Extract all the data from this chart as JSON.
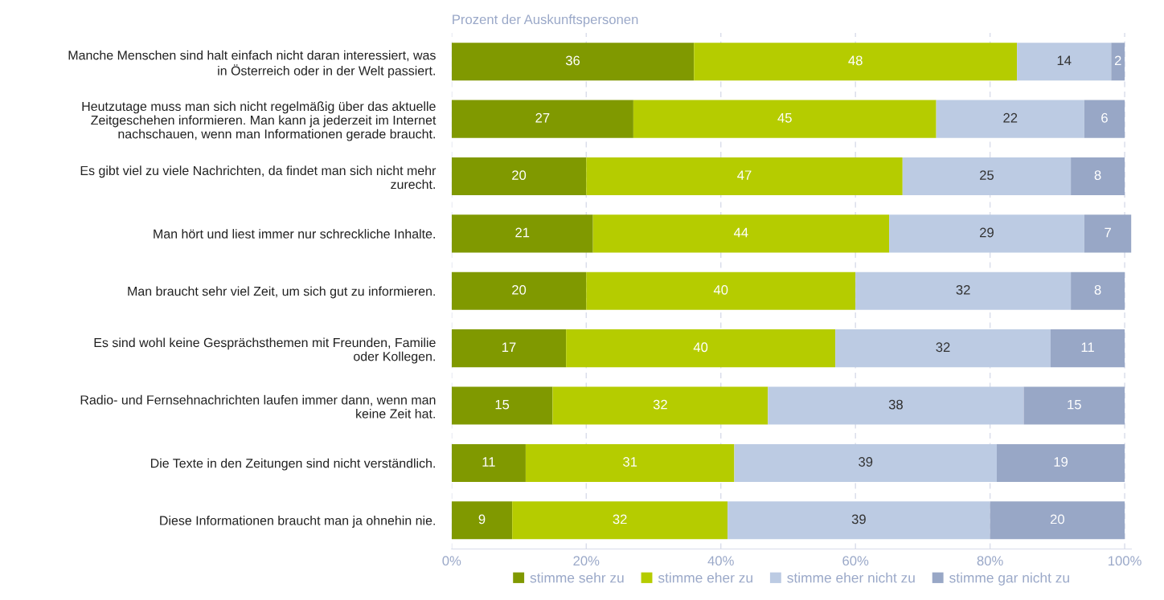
{
  "chart_data": {
    "type": "bar",
    "orientation": "horizontal",
    "stacked": true,
    "xlabel": "Prozent der Auskunftspersonen",
    "categories": [
      "Manche Menschen sind halt einfach nicht daran interessiert, was\nin Österreich oder in der Welt passiert.",
      "Heutzutage muss man sich nicht regelmäßig über das aktuelle\nZeitgeschehen informieren. Man kann ja jederzeit im Internet\nnachschauen, wenn man Informationen gerade braucht.",
      "Es gibt viel zu viele Nachrichten, da findet man sich nicht mehr\nzurecht.",
      "Man hört und liest immer nur schreckliche Inhalte.",
      "Man braucht sehr viel Zeit, um sich gut zu informieren.",
      "Es sind wohl keine Gesprächsthemen mit Freunden, Familie\noder Kollegen.",
      "Radio- und Fernsehnachrichten laufen immer dann, wenn man\nkeine Zeit hat.",
      "Die Texte in den Zeitungen sind nicht verständlich.",
      "Diese Informationen braucht man ja ohnehin nie."
    ],
    "series": [
      {
        "name": "stimme sehr zu",
        "color": "#809900",
        "values": [
          36,
          27,
          20,
          21,
          20,
          17,
          15,
          11,
          9
        ]
      },
      {
        "name": "stimme eher zu",
        "color": "#b5cc00",
        "values": [
          48,
          45,
          47,
          44,
          40,
          40,
          32,
          31,
          32
        ]
      },
      {
        "name": "stimme eher nicht zu",
        "color": "#bccbe3",
        "values": [
          14,
          22,
          25,
          29,
          32,
          32,
          38,
          39,
          39
        ]
      },
      {
        "name": "stimme gar nicht zu",
        "color": "#98a7c6",
        "values": [
          2,
          6,
          8,
          7,
          8,
          11,
          15,
          19,
          20
        ]
      }
    ],
    "xlim": [
      0,
      101
    ],
    "xticks": [
      {
        "value": 0,
        "label": "0%"
      },
      {
        "value": 20,
        "label": "20%"
      },
      {
        "value": 40,
        "label": "40%"
      },
      {
        "value": 60,
        "label": "60%"
      },
      {
        "value": 80,
        "label": "80%"
      },
      {
        "value": 100,
        "label": "100%"
      }
    ],
    "data_labels": true,
    "grid": "x",
    "legend": "bottom"
  }
}
